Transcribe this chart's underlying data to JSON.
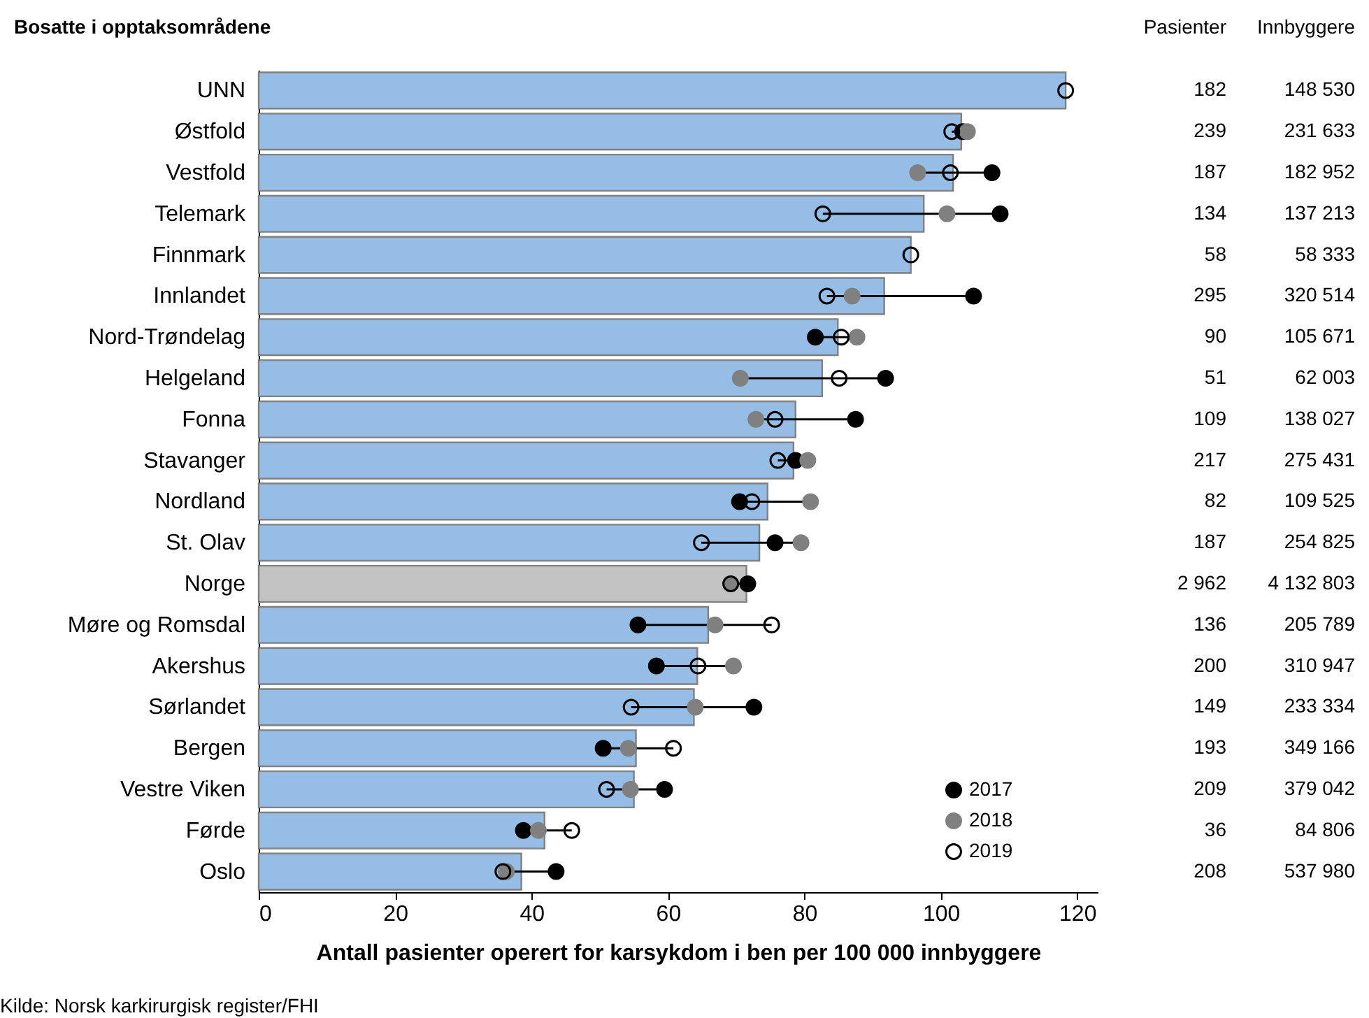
{
  "chart_data": {
    "type": "bar",
    "orientation": "horizontal",
    "title": "Bosatte i opptaksområdene",
    "xlabel": "Antall pasienter operert for karsykdom i ben per 100 000 innbyggere",
    "categories": [
      "UNN",
      "Østfold",
      "Vestfold",
      "Telemark",
      "Finnmark",
      "Innlandet",
      "Nord-Trøndelag",
      "Helgeland",
      "Fonna",
      "Stavanger",
      "Nordland",
      "St. Olav",
      "Norge",
      "Møre og Romsdal",
      "Akershus",
      "Sørlandet",
      "Bergen",
      "Vestre Viken",
      "Førde",
      "Oslo"
    ],
    "xlim": [
      0,
      123
    ],
    "xticks": [
      0,
      20,
      40,
      60,
      80,
      100,
      120
    ],
    "grid": false,
    "legend": "bottom right",
    "series": [
      {
        "colors": [
          "#95bde6",
          "#95bde6",
          "#95bde6",
          "#95bde6",
          "#95bde6",
          "#95bde6",
          "#95bde6",
          "#95bde6",
          "#95bde6",
          "#95bde6",
          "#95bde6",
          "#95bde6",
          "#c3c3c3",
          "#95bde6",
          "#95bde6",
          "#95bde6",
          "#95bde6",
          "#95bde6",
          "#95bde6",
          "#95bde6"
        ],
        "values": [
          118.3,
          103.0,
          101.8,
          97.5,
          95.6,
          91.7,
          84.9,
          82.6,
          78.7,
          78.4,
          74.6,
          73.4,
          71.5,
          65.9,
          64.3,
          63.8,
          55.3,
          55.0,
          41.9,
          38.5
        ]
      },
      {
        "type": "scatter",
        "name": "2017",
        "color": "#000000",
        "marker": "circle",
        "values": [
          null,
          103.2,
          107.5,
          108.7,
          null,
          104.8,
          81.6,
          91.9,
          87.5,
          78.7,
          70.5,
          75.7,
          71.7,
          55.6,
          58.3,
          72.6,
          50.5,
          59.5,
          38.8,
          43.6
        ]
      },
      {
        "type": "scatter",
        "name": "2018",
        "color": "#808080",
        "marker": "circle",
        "values": [
          null,
          103.9,
          96.6,
          100.9,
          null,
          87.0,
          87.7,
          70.6,
          72.9,
          80.5,
          80.9,
          79.5,
          69.2,
          66.9,
          69.6,
          64.0,
          54.2,
          54.5,
          41.0,
          36.3
        ]
      },
      {
        "type": "scatter",
        "name": "2019",
        "color": "#000000",
        "marker": "circle",
        "values": [
          118.3,
          101.6,
          101.4,
          82.7,
          95.6,
          83.3,
          85.4,
          85.1,
          75.7,
          76.1,
          72.3,
          64.9,
          69.2,
          75.2,
          64.4,
          54.6,
          60.8,
          51.0,
          45.9,
          35.8
        ]
      }
    ],
    "annotations": [
      "Pasienter",
      "Innbyggere",
      "Kilde: Norsk karkirurgisk register/FHI",
      "182",
      "148 530",
      "239",
      "231 633",
      "187",
      "182 952",
      "134",
      "137 213",
      "58",
      "58 333",
      "295",
      "320 514",
      "90",
      "105 671",
      "51",
      "62 003",
      "109",
      "138 027",
      "217",
      "275 431",
      "82",
      "109 525",
      "187",
      "254 825",
      "2 962",
      "4 132 803",
      "136",
      "205 789",
      "200",
      "310 947",
      "149",
      "233 334",
      "193",
      "349 166",
      "209",
      "379 042",
      "36",
      "84 806",
      "208",
      "537 980"
    ]
  }
}
